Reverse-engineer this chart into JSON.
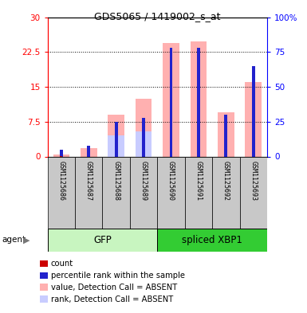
{
  "title": "GDS5065 / 1419002_s_at",
  "samples": [
    "GSM1125686",
    "GSM1125687",
    "GSM1125688",
    "GSM1125689",
    "GSM1125690",
    "GSM1125691",
    "GSM1125692",
    "GSM1125693"
  ],
  "value_absent": [
    0.5,
    1.8,
    9.0,
    12.5,
    24.5,
    24.8,
    9.5,
    16.0
  ],
  "rank_absent_pct": [
    0.0,
    0.0,
    15.0,
    18.0,
    0.0,
    0.0,
    0.0,
    0.0
  ],
  "percentile_blue_pct": [
    5.0,
    8.0,
    25.0,
    28.0,
    78.0,
    78.0,
    30.0,
    65.0
  ],
  "count_red": [
    0.15,
    0.0,
    0.0,
    0.0,
    0.0,
    0.0,
    0.0,
    0.0
  ],
  "left_ylim": [
    0,
    30
  ],
  "right_ylim": [
    0,
    100
  ],
  "left_yticks": [
    0,
    7.5,
    15,
    22.5,
    30
  ],
  "right_yticks": [
    0,
    25,
    50,
    75,
    100
  ],
  "left_yticklabels": [
    "0",
    "7.5",
    "15",
    "22.5",
    "30"
  ],
  "right_yticklabels": [
    "0",
    "25",
    "50",
    "75",
    "100%"
  ],
  "color_value_absent": "#ffb0b0",
  "color_rank_absent": "#c8ccff",
  "color_count": "#cc0000",
  "color_percentile": "#2222cc",
  "bar_width": 0.6,
  "gfp_light_color": "#c8f5c0",
  "xbp1_dark_color": "#33cc33",
  "sample_box_color": "#c8c8c8",
  "legend_items": [
    {
      "color": "#cc0000",
      "label": "count"
    },
    {
      "color": "#2222cc",
      "label": "percentile rank within the sample"
    },
    {
      "color": "#ffb0b0",
      "label": "value, Detection Call = ABSENT"
    },
    {
      "color": "#c8ccff",
      "label": "rank, Detection Call = ABSENT"
    }
  ]
}
